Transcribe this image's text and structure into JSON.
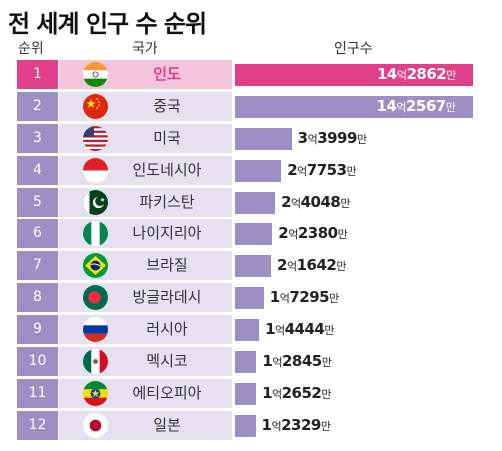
{
  "title": "전 세계 인구 수 순위",
  "headers": {
    "rank": "순위",
    "country": "국가",
    "population": "인구수"
  },
  "colors": {
    "highlight": "#e0408a",
    "bar": "#9b8fc4",
    "panel": "#e6e1f1",
    "panel_highlight": "#f4c5dc"
  },
  "chart_data": {
    "type": "bar",
    "orientation": "horizontal",
    "title": "전 세계 인구 수 순위",
    "unit_labels": {
      "eok": "억",
      "man": "만"
    },
    "rows": [
      {
        "rank": "1",
        "country": "인도",
        "flag": "india-flag-icon",
        "eok": "14",
        "man": "2862",
        "value": 1428620000,
        "highlight": true
      },
      {
        "rank": "2",
        "country": "중국",
        "flag": "china-flag-icon",
        "eok": "14",
        "man": "2567",
        "value": 1425670000
      },
      {
        "rank": "3",
        "country": "미국",
        "flag": "usa-flag-icon",
        "eok": "3",
        "man": "3999",
        "value": 339990000
      },
      {
        "rank": "4",
        "country": "인도네시아",
        "flag": "indonesia-flag-icon",
        "eok": "2",
        "man": "7753",
        "value": 277530000
      },
      {
        "rank": "5",
        "country": "파키스탄",
        "flag": "pakistan-flag-icon",
        "eok": "2",
        "man": "4048",
        "value": 240480000
      },
      {
        "rank": "6",
        "country": "나이지리아",
        "flag": "nigeria-flag-icon",
        "eok": "2",
        "man": "2380",
        "value": 223800000
      },
      {
        "rank": "7",
        "country": "브라질",
        "flag": "brazil-flag-icon",
        "eok": "2",
        "man": "1642",
        "value": 216420000
      },
      {
        "rank": "8",
        "country": "방글라데시",
        "flag": "bangladesh-flag-icon",
        "eok": "1",
        "man": "7295",
        "value": 172950000
      },
      {
        "rank": "9",
        "country": "러시아",
        "flag": "russia-flag-icon",
        "eok": "1",
        "man": "4444",
        "value": 144440000
      },
      {
        "rank": "10",
        "country": "멕시코",
        "flag": "mexico-flag-icon",
        "eok": "1",
        "man": "2845",
        "value": 128450000
      },
      {
        "rank": "11",
        "country": "에티오피아",
        "flag": "ethiopia-flag-icon",
        "eok": "1",
        "man": "2652",
        "value": 126520000
      },
      {
        "rank": "12",
        "country": "일본",
        "flag": "japan-flag-icon",
        "eok": "1",
        "man": "2329",
        "value": 123290000
      }
    ]
  }
}
